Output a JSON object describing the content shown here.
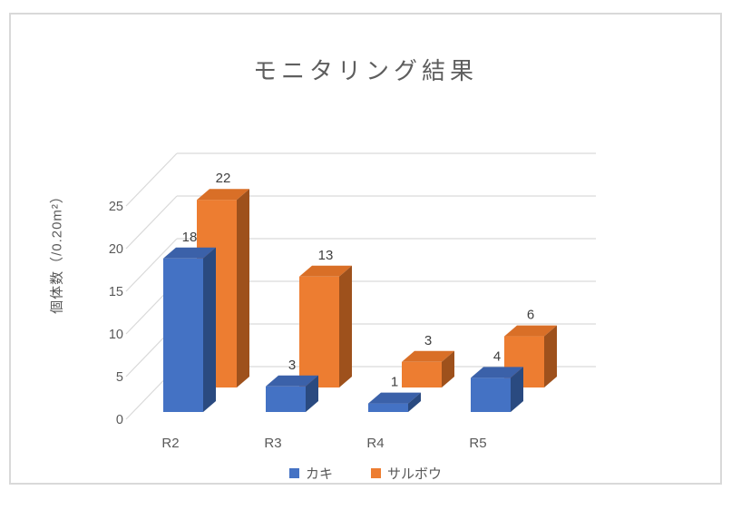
{
  "frame": {
    "border_color": "#D9D9D9",
    "background": "#ffffff"
  },
  "chart_data": {
    "type": "bar",
    "style": "3d-clustered-column",
    "title": "モニタリング結果",
    "categories": [
      "R2",
      "R3",
      "R4",
      "R5"
    ],
    "series": [
      {
        "name": "カキ",
        "values": [
          18,
          3,
          1,
          4
        ],
        "color": "#4472C4",
        "color_top": "#3B61A9",
        "color_side": "#2A4A80"
      },
      {
        "name": "サルボウ",
        "values": [
          22,
          13,
          3,
          6
        ],
        "color": "#ED7D31",
        "color_top": "#D96F27",
        "color_side": "#9E511C"
      }
    ],
    "xlabel": "",
    "ylabel": "個体数（/0.20m²）",
    "yticks": [
      0,
      5,
      10,
      15,
      20,
      25
    ],
    "ylim": [
      0,
      25
    ],
    "grid": true,
    "gridline_color": "#D9D9D9",
    "text_color": "#595959",
    "data_label_color": "#404040",
    "legend_position": "bottom"
  }
}
